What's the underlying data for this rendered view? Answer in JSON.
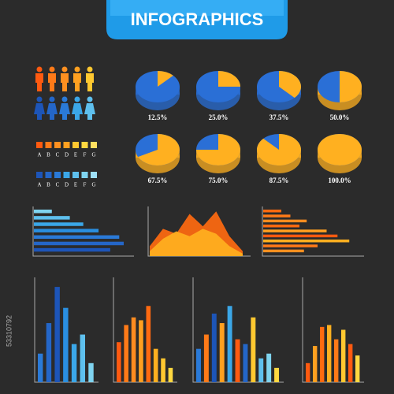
{
  "title": "INFOGRAPHICS",
  "side_id": "53310792",
  "scales": [
    [
      "A",
      "B",
      "C",
      "D",
      "E",
      "F",
      "G"
    ],
    [
      "A",
      "B",
      "C",
      "D",
      "E",
      "F",
      "G"
    ]
  ],
  "chart_data": [
    {
      "type": "pie-grid",
      "values": [
        12.5,
        25.0,
        37.5,
        50.0,
        67.5,
        75.0,
        87.5,
        100.0
      ],
      "value_labels": [
        "12.5%",
        "25.0%",
        "37.5%",
        "50.0%",
        "67.5%",
        "75.0%",
        "87.5%",
        "100.0%"
      ],
      "colors": [
        "#ffb020",
        "#2a6fd6"
      ]
    },
    {
      "type": "hbar",
      "values": [
        20,
        40,
        55,
        72,
        95,
        100,
        85
      ],
      "xlim": [
        0,
        100
      ],
      "colors": [
        "#7fd4f0",
        "#5ec0ee",
        "#3ba7e8",
        "#2a8fe0",
        "#2a7ad8",
        "#2466c8",
        "#1d55b8"
      ]
    },
    {
      "type": "area",
      "ylim": [
        0,
        100
      ],
      "series": [
        {
          "color": "#ff6a10",
          "values": [
            20,
            55,
            45,
            85,
            60,
            90,
            40,
            10
          ]
        },
        {
          "color": "#ffb020",
          "values": [
            10,
            35,
            50,
            40,
            55,
            45,
            20,
            5
          ]
        }
      ]
    },
    {
      "type": "hbar",
      "values": [
        20,
        30,
        48,
        40,
        70,
        82,
        95,
        60,
        45
      ],
      "xlim": [
        0,
        100
      ],
      "colors": [
        "#ff6a10",
        "#ff7a18",
        "#ff8c20",
        "#ff6a10",
        "#ffa020",
        "#ff5a10",
        "#ffb020",
        "#ff7a18",
        "#ff9020"
      ]
    },
    {
      "type": "bar",
      "values": [
        30,
        62,
        100,
        78,
        40,
        50,
        20
      ],
      "ylim": [
        0,
        110
      ],
      "colors": [
        "#2a7ad8",
        "#2466c8",
        "#1d55b8",
        "#2a8fe0",
        "#3ba7e8",
        "#5ec0ee",
        "#7fd4f0"
      ]
    },
    {
      "type": "bar",
      "values": [
        42,
        60,
        68,
        65,
        80,
        35,
        25,
        15
      ],
      "ylim": [
        0,
        110
      ],
      "colors": [
        "#ff5a10",
        "#ff7a18",
        "#ff8c20",
        "#ffa020",
        "#ff6a10",
        "#ffb020",
        "#ffc830",
        "#ffd840"
      ]
    },
    {
      "type": "bar",
      "values": [
        35,
        50,
        72,
        62,
        80,
        45,
        40,
        68,
        25,
        30,
        15
      ],
      "ylim": [
        0,
        110
      ],
      "colors": [
        "#2a7ad8",
        "#ff7a18",
        "#1d55b8",
        "#ffa020",
        "#3ba7e8",
        "#ff5a10",
        "#2466c8",
        "#ffc830",
        "#5ec0ee",
        "#7fd4f0",
        "#ffd840"
      ]
    },
    {
      "type": "bar",
      "values": [
        20,
        38,
        58,
        60,
        45,
        55,
        40,
        28
      ],
      "ylim": [
        0,
        110
      ],
      "colors": [
        "#ff5a10",
        "#ffa020",
        "#ff6a10",
        "#ffb020",
        "#ff7a18",
        "#ffc830",
        "#ff5a10",
        "#ffd840"
      ]
    }
  ]
}
